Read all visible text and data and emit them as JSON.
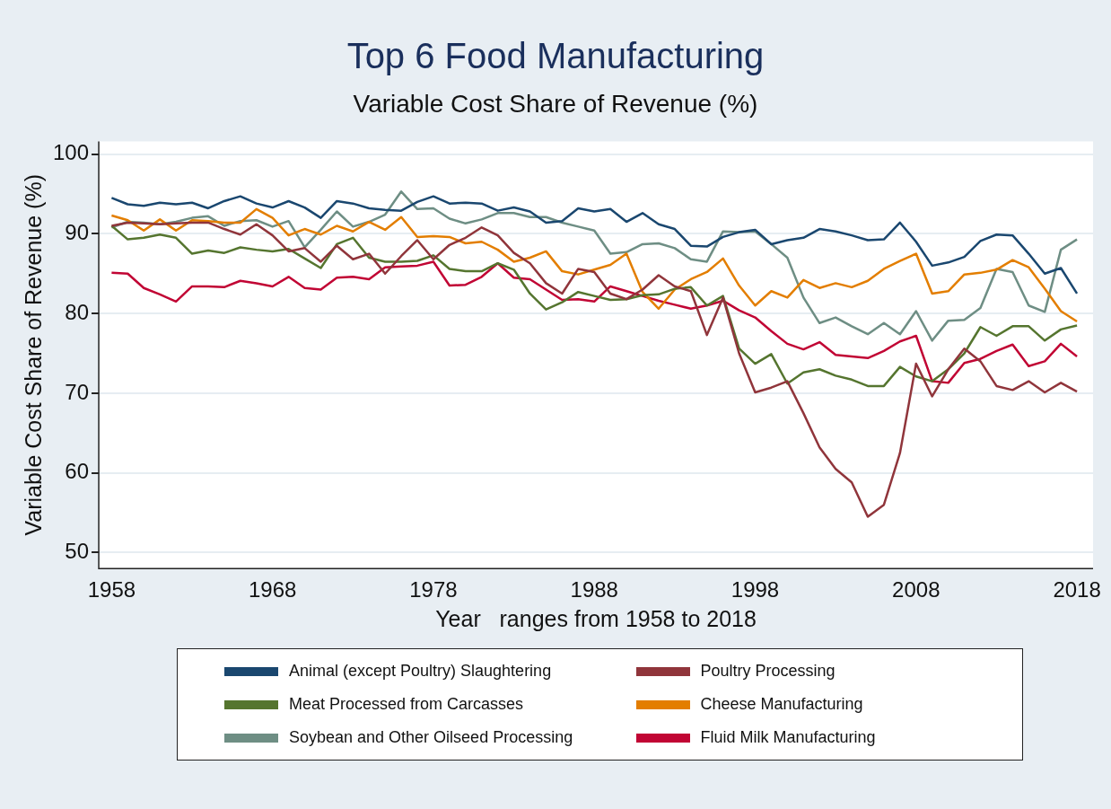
{
  "chart_data": {
    "type": "line",
    "title": "Top 6 Food Manufacturing",
    "subtitle": "Variable Cost Share of Revenue (%)",
    "xlabel": "Year   ranges from 1958 to 2018",
    "ylabel": "Variable Cost Share of Revenue (%)",
    "x": [
      1958,
      1959,
      1960,
      1961,
      1962,
      1963,
      1964,
      1965,
      1966,
      1967,
      1968,
      1969,
      1970,
      1971,
      1972,
      1973,
      1974,
      1975,
      1976,
      1977,
      1978,
      1979,
      1980,
      1981,
      1982,
      1983,
      1984,
      1985,
      1986,
      1987,
      1988,
      1989,
      1990,
      1991,
      1992,
      1993,
      1994,
      1995,
      1996,
      1997,
      1998,
      1999,
      2000,
      2001,
      2002,
      2003,
      2004,
      2005,
      2006,
      2007,
      2008,
      2009,
      2010,
      2011,
      2012,
      2013,
      2014,
      2015,
      2016,
      2017,
      2018
    ],
    "xlim": [
      1957.2,
      2019
    ],
    "xticks": [
      1958,
      1968,
      1978,
      1988,
      1998,
      2008,
      2018
    ],
    "ylim": [
      48,
      101.6
    ],
    "yticks": [
      50,
      60,
      70,
      80,
      90,
      100
    ],
    "grid": "y",
    "legend": "bottom",
    "marker": "none",
    "line_style": "solid",
    "series": [
      {
        "name": "Animal (except Poultry) Slaughtering",
        "color": "#1a476f",
        "values": [
          94.5,
          93.7,
          93.5,
          93.9,
          93.7,
          93.9,
          93.2,
          94.1,
          94.7,
          93.8,
          93.3,
          94.1,
          93.3,
          92.0,
          94.1,
          93.8,
          93.2,
          93.0,
          92.9,
          94.0,
          94.7,
          93.8,
          93.9,
          93.8,
          92.9,
          93.3,
          92.8,
          91.4,
          91.6,
          93.2,
          92.8,
          93.1,
          91.5,
          92.6,
          91.2,
          90.6,
          88.5,
          88.4,
          89.6,
          90.2,
          90.5,
          88.7,
          89.2,
          89.5,
          90.6,
          90.3,
          89.8,
          89.2,
          89.3,
          91.4,
          89.0,
          86.0,
          86.4,
          87.1,
          89.1,
          89.9,
          89.8,
          87.5,
          85.0,
          85.7,
          82.5
        ]
      },
      {
        "name": "Poultry Processing",
        "color": "#90353b",
        "values": [
          91.0,
          91.4,
          91.3,
          91.2,
          91.3,
          91.4,
          91.4,
          90.6,
          89.9,
          91.2,
          89.8,
          87.8,
          88.2,
          86.5,
          88.5,
          86.8,
          87.5,
          85.0,
          87.2,
          89.2,
          86.8,
          88.6,
          89.5,
          90.8,
          89.8,
          87.6,
          86.3,
          83.8,
          82.5,
          85.6,
          85.2,
          82.5,
          81.8,
          83.0,
          84.8,
          83.4,
          82.8,
          77.3,
          82.0,
          75.0,
          70.1,
          70.7,
          71.5,
          67.5,
          63.2,
          60.5,
          58.8,
          54.5,
          56.0,
          62.5,
          73.7,
          69.6,
          73.0,
          75.6,
          74.0,
          70.9,
          70.4,
          71.5,
          70.1,
          71.3,
          70.2
        ]
      },
      {
        "name": "Meat Processed from Carcasses",
        "color": "#55752f",
        "values": [
          91.0,
          89.3,
          89.5,
          89.9,
          89.5,
          87.5,
          87.9,
          87.6,
          88.3,
          88.0,
          87.8,
          88.1,
          86.9,
          85.7,
          88.7,
          89.5,
          87.0,
          86.5,
          86.5,
          86.6,
          87.3,
          85.6,
          85.3,
          85.3,
          86.3,
          85.5,
          82.5,
          80.5,
          81.4,
          82.7,
          82.2,
          81.7,
          81.8,
          82.3,
          82.4,
          83.1,
          83.3,
          81.0,
          82.2,
          75.6,
          73.7,
          74.9,
          71.2,
          72.6,
          73.0,
          72.2,
          71.7,
          70.9,
          70.9,
          73.3,
          72.1,
          71.5,
          73.0,
          75.0,
          78.3,
          77.2,
          78.4,
          78.4,
          76.6,
          78.0,
          78.5
        ]
      },
      {
        "name": "Cheese Manufacturing",
        "color": "#e37e00",
        "values": [
          92.3,
          91.7,
          90.4,
          91.8,
          90.4,
          91.7,
          91.6,
          91.4,
          91.4,
          93.1,
          92.0,
          89.8,
          90.6,
          89.9,
          91.0,
          90.3,
          91.5,
          90.5,
          92.1,
          89.6,
          89.7,
          89.6,
          88.8,
          89.0,
          88.0,
          86.5,
          87.0,
          87.8,
          85.3,
          84.9,
          85.5,
          86.1,
          87.5,
          82.7,
          80.6,
          83.0,
          84.3,
          85.2,
          86.9,
          83.5,
          81.0,
          82.8,
          82.0,
          84.2,
          83.2,
          83.8,
          83.3,
          84.1,
          85.6,
          86.6,
          87.5,
          82.5,
          82.8,
          84.9,
          85.1,
          85.5,
          86.7,
          85.8,
          83.1,
          80.3,
          79.0
        ]
      },
      {
        "name": "Soybean and Other Oilseed Processing",
        "color": "#6e8e84",
        "values": [
          90.8,
          91.5,
          91.4,
          91.2,
          91.5,
          92.0,
          92.2,
          91.0,
          91.6,
          91.7,
          90.9,
          91.6,
          88.3,
          90.5,
          92.8,
          90.9,
          91.5,
          92.4,
          95.3,
          93.1,
          93.2,
          91.9,
          91.3,
          91.8,
          92.6,
          92.6,
          92.1,
          92.1,
          91.4,
          90.9,
          90.4,
          87.5,
          87.7,
          88.7,
          88.8,
          88.2,
          86.8,
          86.5,
          90.3,
          90.2,
          90.3,
          88.7,
          87.0,
          82.0,
          78.8,
          79.5,
          78.4,
          77.4,
          78.8,
          77.4,
          80.3,
          76.6,
          79.1,
          79.2,
          80.7,
          85.6,
          85.2,
          81.0,
          80.2,
          88.0,
          89.3
        ]
      },
      {
        "name": "Fluid Milk Manufacturing",
        "color": "#c10534",
        "values": [
          85.1,
          85.0,
          83.2,
          82.4,
          81.5,
          83.4,
          83.4,
          83.3,
          84.1,
          83.8,
          83.4,
          84.6,
          83.2,
          83.0,
          84.5,
          84.6,
          84.3,
          85.8,
          85.9,
          86.0,
          86.5,
          83.5,
          83.6,
          84.6,
          86.3,
          84.5,
          84.3,
          83.0,
          81.7,
          81.8,
          81.5,
          83.4,
          82.8,
          82.2,
          81.6,
          81.1,
          80.6,
          81.0,
          81.6,
          80.4,
          79.5,
          77.8,
          76.2,
          75.5,
          76.4,
          74.8,
          74.6,
          74.4,
          75.3,
          76.5,
          77.2,
          71.5,
          71.3,
          73.8,
          74.3,
          75.3,
          76.1,
          73.4,
          74.0,
          76.2,
          74.6
        ]
      }
    ]
  }
}
